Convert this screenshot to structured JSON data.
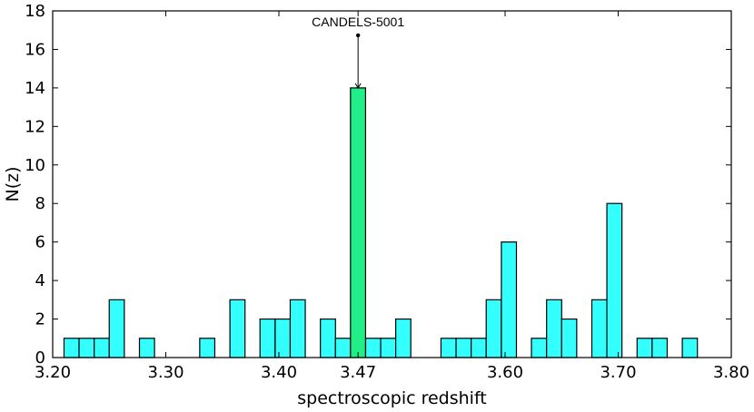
{
  "chart_data": {
    "type": "bar",
    "title": "",
    "xlabel": "spectroscopic redshift",
    "ylabel": "N(z)",
    "xlim": [
      3.2,
      3.8
    ],
    "ylim": [
      0,
      18
    ],
    "xticks": [
      3.2,
      3.3,
      3.4,
      3.47,
      3.6,
      3.7,
      3.8
    ],
    "xtick_labels": [
      "3.20",
      "3.30",
      "3.40",
      "3.47",
      "3.60",
      "3.70",
      "3.80"
    ],
    "yticks": [
      0,
      2,
      4,
      6,
      8,
      10,
      12,
      14,
      16,
      18
    ],
    "ytick_labels": [
      "0",
      "2",
      "4",
      "6",
      "8",
      "10",
      "12",
      "14",
      "16",
      "18"
    ],
    "bin_width": 0.01333,
    "bars": [
      {
        "start": 3.21,
        "value": 1,
        "highlight": false
      },
      {
        "start": 3.2233,
        "value": 1,
        "highlight": false
      },
      {
        "start": 3.2367,
        "value": 1,
        "highlight": false
      },
      {
        "start": 3.25,
        "value": 3,
        "highlight": false
      },
      {
        "start": 3.2767,
        "value": 1,
        "highlight": false
      },
      {
        "start": 3.33,
        "value": 1,
        "highlight": false
      },
      {
        "start": 3.3567,
        "value": 3,
        "highlight": false
      },
      {
        "start": 3.3833,
        "value": 2,
        "highlight": false
      },
      {
        "start": 3.3967,
        "value": 2,
        "highlight": false
      },
      {
        "start": 3.41,
        "value": 3,
        "highlight": false
      },
      {
        "start": 3.4367,
        "value": 2,
        "highlight": false
      },
      {
        "start": 3.45,
        "value": 1,
        "highlight": false
      },
      {
        "start": 3.4633,
        "value": 14,
        "highlight": true
      },
      {
        "start": 3.4767,
        "value": 1,
        "highlight": false
      },
      {
        "start": 3.49,
        "value": 1,
        "highlight": false
      },
      {
        "start": 3.5033,
        "value": 2,
        "highlight": false
      },
      {
        "start": 3.5433,
        "value": 1,
        "highlight": false
      },
      {
        "start": 3.5567,
        "value": 1,
        "highlight": false
      },
      {
        "start": 3.57,
        "value": 1,
        "highlight": false
      },
      {
        "start": 3.5833,
        "value": 3,
        "highlight": false
      },
      {
        "start": 3.5967,
        "value": 6,
        "highlight": false
      },
      {
        "start": 3.6233,
        "value": 1,
        "highlight": false
      },
      {
        "start": 3.6367,
        "value": 3,
        "highlight": false
      },
      {
        "start": 3.65,
        "value": 2,
        "highlight": false
      },
      {
        "start": 3.6767,
        "value": 3,
        "highlight": false
      },
      {
        "start": 3.69,
        "value": 8,
        "highlight": false
      },
      {
        "start": 3.7167,
        "value": 1,
        "highlight": false
      },
      {
        "start": 3.73,
        "value": 1,
        "highlight": false
      },
      {
        "start": 3.7567,
        "value": 1,
        "highlight": false
      }
    ],
    "annotation": {
      "text": "CANDELS-5001",
      "target_x": 3.47,
      "target_y": 14,
      "text_y": 17.2
    },
    "colors": {
      "bar": "#33ffff",
      "highlight": "#22ee88",
      "edge": "#000000"
    }
  }
}
